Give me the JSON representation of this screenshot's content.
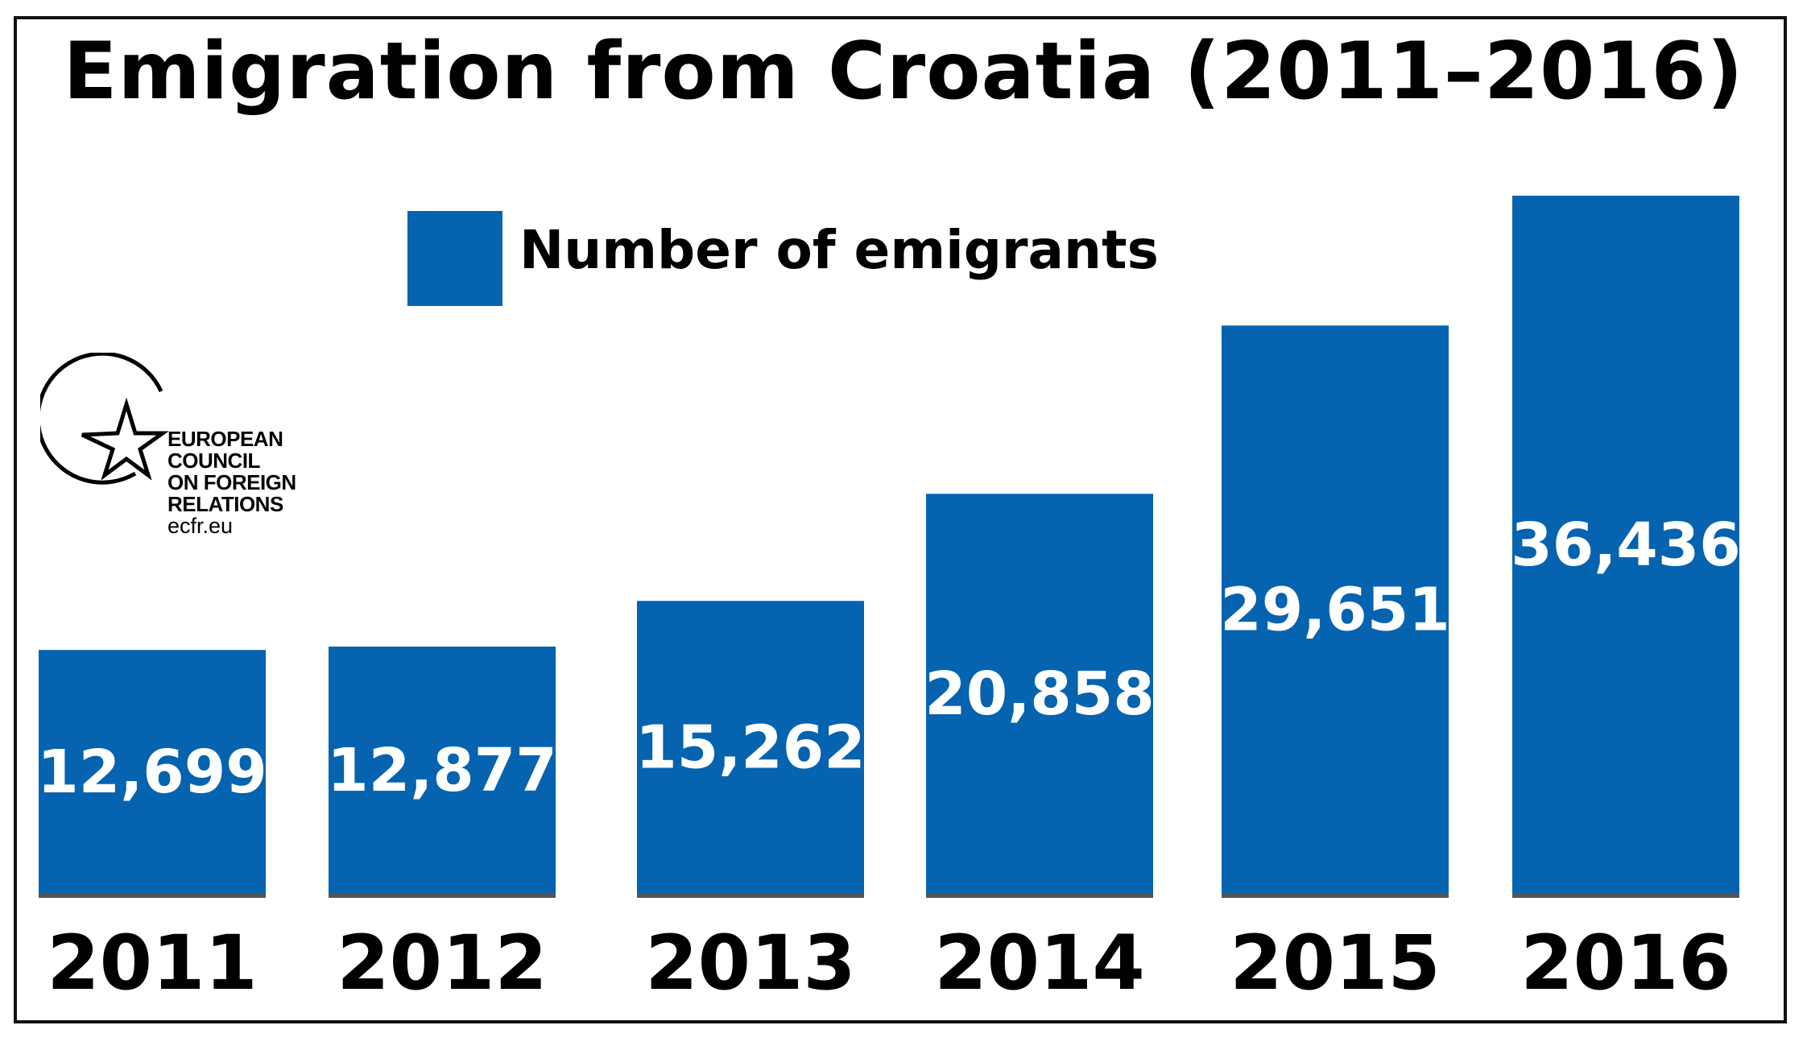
{
  "chart_data": {
    "type": "bar",
    "title": "Emigration from Croatia (2011–2016)",
    "categories": [
      "2011",
      "2012",
      "2013",
      "2014",
      "2015",
      "2016"
    ],
    "series": [
      {
        "name": "Number of emigrants",
        "values": [
          12699,
          12877,
          15262,
          20858,
          29651,
          36436
        ],
        "labels": [
          "12,699",
          "12,877",
          "15,262",
          "20,858",
          "29,651",
          "36,436"
        ],
        "color": "#0563b0"
      }
    ],
    "xlabel": "",
    "ylabel": "",
    "ylim": [
      0,
      36436
    ],
    "grid": false,
    "legend_position": "top"
  },
  "logo": {
    "lines": [
      "EUROPEAN",
      "COUNCIL",
      "ON FOREIGN",
      "RELATIONS"
    ],
    "url": "ecfr.eu",
    "icon": "star-in-circle-icon"
  },
  "colors": {
    "bar": "#0563b0",
    "baseline": "#555555",
    "text": "#000000",
    "value_text": "#ffffff"
  }
}
